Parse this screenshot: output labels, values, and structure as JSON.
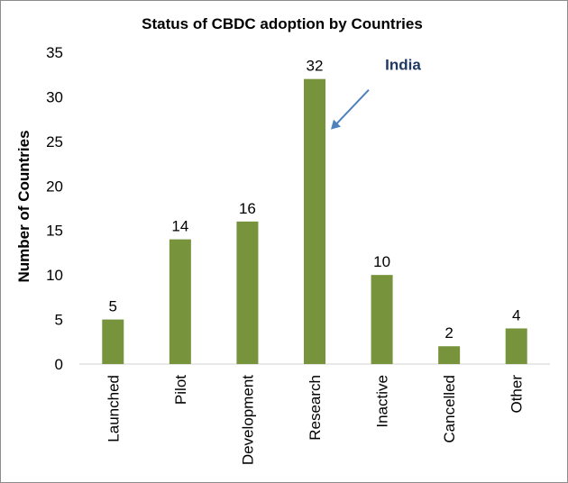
{
  "chart_data": {
    "type": "bar",
    "title": "Status of CBDC adoption by Countries",
    "xlabel": "",
    "ylabel": "Number of Countries",
    "categories": [
      "Launched",
      "Pilot",
      "Development",
      "Research",
      "Inactive",
      "Cancelled",
      "Other"
    ],
    "values": [
      5,
      14,
      16,
      32,
      10,
      2,
      4
    ],
    "ylim": [
      0,
      35
    ],
    "yticks": [
      0,
      5,
      10,
      15,
      20,
      25,
      30,
      35
    ],
    "grid": false,
    "legend": "none",
    "bar_color": "#77933c",
    "annotation": {
      "text": "India",
      "target_category": "Research",
      "color": "#1f3864",
      "arrow_color": "#4f81bd"
    }
  }
}
